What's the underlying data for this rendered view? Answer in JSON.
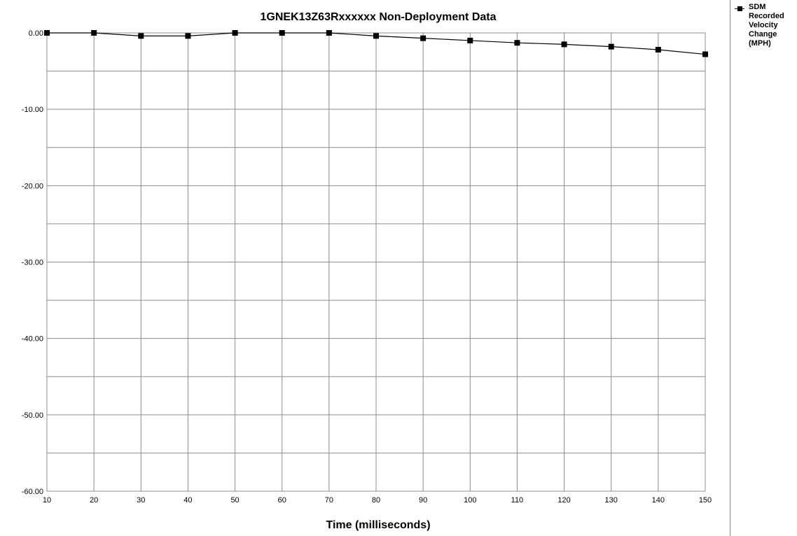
{
  "chart_data": {
    "type": "line",
    "title": "1GNEK13Z63Rxxxxxx  Non-Deployment Data",
    "xlabel": "Time (milliseconds)",
    "ylabel": "",
    "x": [
      10,
      20,
      30,
      40,
      50,
      60,
      70,
      80,
      90,
      100,
      110,
      120,
      130,
      140,
      150
    ],
    "xlim": [
      10,
      150
    ],
    "ylim": [
      -60,
      0
    ],
    "x_ticks": [
      "10",
      "20",
      "30",
      "40",
      "50",
      "60",
      "70",
      "80",
      "90",
      "100",
      "110",
      "120",
      "130",
      "140",
      "150"
    ],
    "y_ticks": [
      "0.00",
      "-10.00",
      "-20.00",
      "-30.00",
      "-40.00",
      "-50.00",
      "-60.00"
    ],
    "grid": true,
    "legend_position": "right",
    "series": [
      {
        "name": "SDM Recorded Velocity Change (MPH)",
        "color": "#000000",
        "marker": "square",
        "values": [
          0,
          0,
          -0.4,
          -0.4,
          0,
          0,
          0,
          -0.4,
          -0.7,
          -1.0,
          -1.3,
          -1.5,
          -1.8,
          -2.2,
          -2.8
        ]
      }
    ]
  }
}
